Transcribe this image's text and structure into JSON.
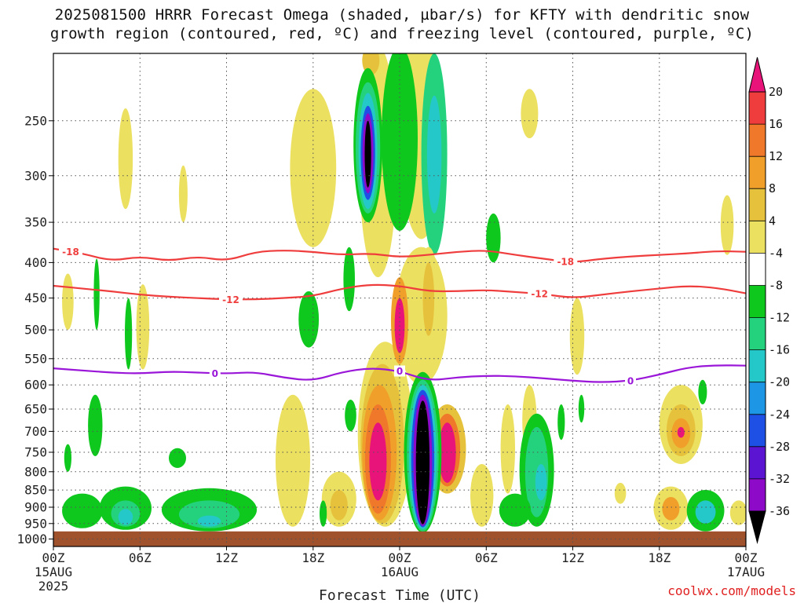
{
  "chart_data": {
    "type": "heatmap",
    "title_line1": "2025081500 HRRR Forecast Omega (shaded, µbar/s) for KFTY with dendritic snow",
    "title_line2": "growth region (contoured, red, ºC) and freezing level (contoured, purple, ºC)",
    "xlabel": "Forecast Time (UTC)",
    "credit": "coolwx.com/models",
    "x_hours": [
      0,
      6,
      12,
      18,
      24,
      30,
      36,
      42,
      48
    ],
    "x_tick_labels": [
      "00Z",
      "06Z",
      "12Z",
      "18Z",
      "00Z",
      "06Z",
      "12Z",
      "18Z",
      "00Z"
    ],
    "x_date_labels": [
      {
        "hour": 0,
        "lines": [
          "15AUG",
          "2025"
        ]
      },
      {
        "hour": 24,
        "lines": [
          "16AUG"
        ]
      },
      {
        "hour": 48,
        "lines": [
          "17AUG"
        ]
      }
    ],
    "y_ticks": [
      250,
      300,
      350,
      400,
      450,
      500,
      550,
      600,
      650,
      700,
      750,
      800,
      850,
      900,
      950,
      1000
    ],
    "y_scale": "log-pressure",
    "y_range": [
      1025,
      200
    ],
    "grid": true,
    "colorbar": {
      "levels": [
        -36,
        -32,
        -28,
        -24,
        -20,
        -16,
        -12,
        -8,
        -4,
        4,
        8,
        12,
        16,
        20
      ],
      "tick_labels": [
        "20",
        "16",
        "12",
        "8",
        "4",
        "-4",
        "-8",
        "-12",
        "-16",
        "-20",
        "-24",
        "-28",
        "-32",
        "-36"
      ],
      "colors_top_to_bottom": [
        "#e8147a",
        "#ef3c3c",
        "#f0782a",
        "#f0a02a",
        "#e6c23c",
        "#ece060",
        "#ffffff",
        "#0ec81e",
        "#24d27e",
        "#24c8c8",
        "#1e96e6",
        "#1e50e6",
        "#5a14d2",
        "#8c0ac8",
        "#aaaaaa",
        "#000000"
      ]
    },
    "contours": [
      {
        "name": "-18",
        "color": "#ef3c3c",
        "pressures": [
          382,
          388,
          398,
          392,
          398,
          392,
          398,
          386,
          384,
          386,
          390,
          388,
          393,
          390,
          386,
          384,
          390,
          395,
          400,
          395,
          392,
          390,
          388,
          385,
          386
        ],
        "labels": [
          {
            "hour": 1.2,
            "text": "-18"
          },
          {
            "hour": 35.5,
            "text": "-18"
          }
        ]
      },
      {
        "name": "-12",
        "color": "#ef3c3c",
        "pressures": [
          432,
          436,
          440,
          445,
          448,
          450,
          452,
          452,
          450,
          447,
          436,
          430,
          432,
          440,
          440,
          438,
          441,
          444,
          450,
          445,
          440,
          436,
          432,
          435,
          443
        ],
        "labels": [
          {
            "hour": 12.3,
            "text": "-12"
          },
          {
            "hour": 33.7,
            "text": "-12"
          }
        ]
      },
      {
        "name": "0",
        "color": "#9a16d8",
        "pressures": [
          568,
          572,
          576,
          578,
          574,
          576,
          578,
          575,
          586,
          592,
          575,
          567,
          573,
          592,
          585,
          582,
          583,
          587,
          592,
          595,
          592,
          580,
          566,
          562,
          563
        ],
        "labels": [
          {
            "hour": 11.2,
            "text": "0"
          },
          {
            "hour": 24,
            "text": "0"
          },
          {
            "hour": 40,
            "text": "0"
          }
        ]
      }
    ],
    "shaded_regions": [
      {
        "level": "4",
        "hour": 25.5,
        "pressures": [
          185,
          370
        ],
        "width_h": 3.0
      },
      {
        "level": "4",
        "hour": 22.5,
        "pressures": [
          195,
          420
        ],
        "width_h": 2.6
      },
      {
        "level": "4",
        "hour": 18.0,
        "pressures": [
          225,
          380
        ],
        "width_h": 3.2
      },
      {
        "level": "4",
        "hour": 25.5,
        "pressures": [
          380,
          600
        ],
        "width_h": 3.6
      },
      {
        "level": "8",
        "hour": 22.0,
        "pressures": [
          195,
          215
        ],
        "width_h": 1.2
      },
      {
        "level": "-4",
        "hour": 24.0,
        "pressures": [
          195,
          360
        ],
        "width_h": 2.5
      },
      {
        "level": "-8",
        "hour": 26.4,
        "pressures": [
          200,
          390
        ],
        "width_h": 1.8
      },
      {
        "level": "-12",
        "hour": 26.4,
        "pressures": [
          230,
          340
        ],
        "width_h": 1.0
      },
      {
        "level": "-4",
        "hour": 21.8,
        "pressures": [
          210,
          350
        ],
        "width_h": 2.0
      },
      {
        "level": "-8",
        "hour": 21.8,
        "pressures": [
          220,
          340
        ],
        "width_h": 1.7
      },
      {
        "level": "-12",
        "hour": 21.8,
        "pressures": [
          228,
          335
        ],
        "width_h": 1.3
      },
      {
        "level": "-20",
        "hour": 21.8,
        "pressures": [
          238,
          325
        ],
        "width_h": 1.0
      },
      {
        "level": "-28",
        "hour": 21.8,
        "pressures": [
          244,
          318
        ],
        "width_h": 0.75
      },
      {
        "level": "-36",
        "hour": 21.8,
        "pressures": [
          250,
          312
        ],
        "width_h": 0.45
      },
      {
        "level": "4",
        "hour": 23.0,
        "pressures": [
          520,
          960
        ],
        "width_h": 3.8
      },
      {
        "level": "8",
        "hour": 22.8,
        "pressures": [
          560,
          950
        ],
        "width_h": 3.0
      },
      {
        "level": "12",
        "hour": 22.6,
        "pressures": [
          600,
          940
        ],
        "width_h": 2.4
      },
      {
        "level": "16",
        "hour": 22.5,
        "pressures": [
          640,
          920
        ],
        "width_h": 1.8
      },
      {
        "level": "20",
        "hour": 22.5,
        "pressures": [
          680,
          880
        ],
        "width_h": 1.2
      },
      {
        "level": "12",
        "hour": 24.0,
        "pressures": [
          420,
          560
        ],
        "width_h": 1.2
      },
      {
        "level": "20",
        "hour": 24.0,
        "pressures": [
          450,
          540
        ],
        "width_h": 0.7
      },
      {
        "level": "4",
        "hour": 26.0,
        "pressures": [
          380,
          520
        ],
        "width_h": 1.4
      },
      {
        "level": "8",
        "hour": 26.0,
        "pressures": [
          400,
          510
        ],
        "width_h": 0.8
      },
      {
        "level": "8",
        "hour": 27.3,
        "pressures": [
          640,
          860
        ],
        "width_h": 2.6
      },
      {
        "level": "16",
        "hour": 27.3,
        "pressures": [
          660,
          840
        ],
        "width_h": 1.8
      },
      {
        "level": "20",
        "hour": 27.3,
        "pressures": [
          680,
          830
        ],
        "width_h": 1.2
      },
      {
        "level": "-4",
        "hour": 25.6,
        "pressures": [
          575,
          980
        ],
        "width_h": 2.6
      },
      {
        "level": "-8",
        "hour": 25.6,
        "pressures": [
          590,
          975
        ],
        "width_h": 2.2
      },
      {
        "level": "-12",
        "hour": 25.6,
        "pressures": [
          600,
          968
        ],
        "width_h": 1.9
      },
      {
        "level": "-20",
        "hour": 25.6,
        "pressures": [
          610,
          962
        ],
        "width_h": 1.6
      },
      {
        "level": "-28",
        "hour": 25.6,
        "pressures": [
          620,
          958
        ],
        "width_h": 1.3
      },
      {
        "level": "-36",
        "hour": 25.6,
        "pressures": [
          632,
          952
        ],
        "width_h": 0.95
      },
      {
        "level": "4",
        "hour": 43.5,
        "pressures": [
          600,
          780
        ],
        "width_h": 3.0
      },
      {
        "level": "8",
        "hour": 43.5,
        "pressures": [
          640,
          760
        ],
        "width_h": 2.0
      },
      {
        "level": "12",
        "hour": 43.5,
        "pressures": [
          670,
          740
        ],
        "width_h": 1.3
      },
      {
        "level": "20",
        "hour": 43.5,
        "pressures": [
          690,
          715
        ],
        "width_h": 0.5
      },
      {
        "level": "4",
        "hour": 42.8,
        "pressures": [
          840,
          970
        ],
        "width_h": 2.4
      },
      {
        "level": "12",
        "hour": 42.8,
        "pressures": [
          870,
          940
        ],
        "width_h": 1.2
      },
      {
        "level": "-4",
        "hour": 45.2,
        "pressures": [
          850,
          975
        ],
        "width_h": 2.6
      },
      {
        "level": "-12",
        "hour": 45.2,
        "pressures": [
          880,
          950
        ],
        "width_h": 1.4
      },
      {
        "level": "4",
        "hour": 16.6,
        "pressures": [
          620,
          960
        ],
        "width_h": 2.4
      },
      {
        "level": "4",
        "hour": 19.8,
        "pressures": [
          800,
          960
        ],
        "width_h": 2.4
      },
      {
        "level": "8",
        "hour": 19.8,
        "pressures": [
          850,
          940
        ],
        "width_h": 1.2
      },
      {
        "level": "4",
        "hour": 29.7,
        "pressures": [
          780,
          960
        ],
        "width_h": 1.6
      },
      {
        "level": "4",
        "hour": 31.5,
        "pressures": [
          640,
          860
        ],
        "width_h": 1.0
      },
      {
        "level": "4",
        "hour": 33.0,
        "pressures": [
          600,
          760
        ],
        "width_h": 1.0
      },
      {
        "level": "4",
        "hour": 36.3,
        "pressures": [
          450,
          580
        ],
        "width_h": 1.0
      },
      {
        "level": "4",
        "hour": 46.7,
        "pressures": [
          320,
          390
        ],
        "width_h": 0.9
      },
      {
        "level": "4",
        "hour": 5.0,
        "pressures": [
          240,
          335
        ],
        "width_h": 1.0
      },
      {
        "level": "4",
        "hour": 6.2,
        "pressures": [
          430,
          570
        ],
        "width_h": 0.9
      },
      {
        "level": "4",
        "hour": 1.0,
        "pressures": [
          415,
          500
        ],
        "width_h": 0.8
      },
      {
        "level": "4",
        "hour": 33.0,
        "pressures": [
          225,
          265
        ],
        "width_h": 1.2
      },
      {
        "level": "4",
        "hour": 9.0,
        "pressures": [
          290,
          350
        ],
        "width_h": 0.6
      },
      {
        "level": "4",
        "hour": 47.5,
        "pressures": [
          880,
          955
        ],
        "width_h": 1.2
      },
      {
        "level": "4",
        "hour": 39.3,
        "pressures": [
          830,
          890
        ],
        "width_h": 0.8
      },
      {
        "level": "-4",
        "hour": 30.5,
        "pressures": [
          340,
          400
        ],
        "width_h": 1.0
      },
      {
        "level": "-4",
        "hour": 33.5,
        "pressures": [
          660,
          960
        ],
        "width_h": 2.4
      },
      {
        "level": "-8",
        "hour": 33.5,
        "pressures": [
          690,
          930
        ],
        "width_h": 1.6
      },
      {
        "level": "-12",
        "hour": 33.8,
        "pressures": [
          780,
          880
        ],
        "width_h": 0.8
      },
      {
        "level": "-4",
        "hour": 32.0,
        "pressures": [
          860,
          960
        ],
        "width_h": 2.2
      },
      {
        "level": "-4",
        "hour": 17.7,
        "pressures": [
          440,
          530
        ],
        "width_h": 1.4
      },
      {
        "level": "-4",
        "hour": 2.9,
        "pressures": [
          620,
          760
        ],
        "width_h": 1.0
      },
      {
        "level": "-4",
        "hour": 3.0,
        "pressures": [
          395,
          500
        ],
        "width_h": 0.4
      },
      {
        "level": "-4",
        "hour": 5.2,
        "pressures": [
          450,
          570
        ],
        "width_h": 0.5
      },
      {
        "level": "-4",
        "hour": 1.0,
        "pressures": [
          730,
          800
        ],
        "width_h": 0.5
      },
      {
        "level": "-4",
        "hour": 8.6,
        "pressures": [
          740,
          790
        ],
        "width_h": 1.2
      },
      {
        "level": "-4",
        "hour": 20.5,
        "pressures": [
          380,
          470
        ],
        "width_h": 0.8
      },
      {
        "level": "-4",
        "hour": 2.0,
        "pressures": [
          860,
          965
        ],
        "width_h": 2.8
      },
      {
        "level": "-4",
        "hour": 5.0,
        "pressures": [
          840,
          970
        ],
        "width_h": 3.6
      },
      {
        "level": "-8",
        "hour": 5.0,
        "pressures": [
          880,
          960
        ],
        "width_h": 2.0
      },
      {
        "level": "-12",
        "hour": 5.0,
        "pressures": [
          905,
          955
        ],
        "width_h": 1.0
      },
      {
        "level": "-4",
        "hour": 10.8,
        "pressures": [
          845,
          975
        ],
        "width_h": 6.6
      },
      {
        "level": "-8",
        "hour": 10.8,
        "pressures": [
          880,
          965
        ],
        "width_h": 4.2
      },
      {
        "level": "-12",
        "hour": 10.8,
        "pressures": [
          925,
          960
        ],
        "width_h": 1.6
      },
      {
        "level": "-4",
        "hour": 18.7,
        "pressures": [
          880,
          960
        ],
        "width_h": 0.5
      },
      {
        "level": "-4",
        "hour": 20.6,
        "pressures": [
          630,
          700
        ],
        "width_h": 0.8
      },
      {
        "level": "-4",
        "hour": 35.2,
        "pressures": [
          640,
          720
        ],
        "width_h": 0.5
      },
      {
        "level": "-4",
        "hour": 36.6,
        "pressures": [
          620,
          680
        ],
        "width_h": 0.4
      },
      {
        "level": "-4",
        "hour": 45.0,
        "pressures": [
          590,
          640
        ],
        "width_h": 0.6
      }
    ]
  }
}
